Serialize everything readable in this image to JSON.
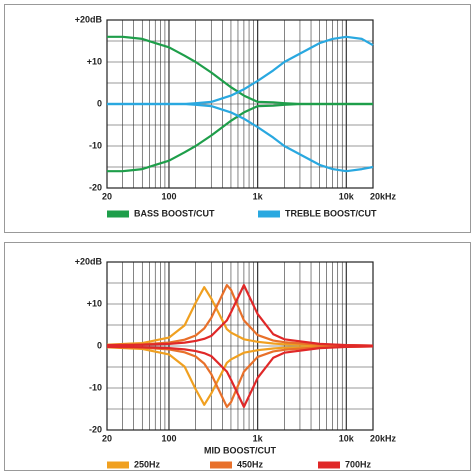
{
  "chart_data": [
    {
      "type": "line",
      "log_x": true,
      "x": [
        20,
        30,
        50,
        70,
        100,
        150,
        200,
        300,
        500,
        700,
        1000,
        1500,
        2000,
        3000,
        5000,
        7000,
        10000,
        15000,
        20000
      ],
      "series": [
        {
          "name": "BASS BOOST/CUT",
          "color": "#1e9e4a",
          "boost": [
            16,
            16,
            15.5,
            14.5,
            13.5,
            11.5,
            10,
            7.5,
            4,
            2,
            0.5,
            0.4,
            0.2,
            0,
            0,
            0,
            0,
            0,
            0
          ],
          "cut": [
            -16,
            -16,
            -15.5,
            -14.5,
            -13.5,
            -11.5,
            -10,
            -7.5,
            -4,
            -2,
            -0.5,
            -0.4,
            -0.2,
            0,
            0,
            0,
            0,
            0,
            0
          ]
        },
        {
          "name": "TREBLE BOOST/CUT",
          "color": "#29a8e0",
          "boost": [
            0,
            0,
            0,
            0,
            0,
            0,
            0.2,
            0.5,
            2,
            3.5,
            5.5,
            8,
            10,
            12,
            14.5,
            15.5,
            16,
            15.5,
            14
          ],
          "cut": [
            0,
            0,
            0,
            0,
            0,
            0,
            -0.2,
            -0.5,
            -2,
            -3.5,
            -5.5,
            -8,
            -10,
            -12,
            -14.5,
            -15.5,
            -16,
            -15.5,
            -15
          ]
        }
      ],
      "xlim": [
        20,
        20000
      ],
      "ylim": [
        -20,
        20
      ],
      "xticks": [
        20,
        100,
        {
          "value": 1000,
          "label": "1k"
        },
        {
          "value": 10000,
          "label": "10k"
        },
        {
          "value": 20000,
          "label": "20kHz"
        }
      ],
      "yticks": [
        {
          "value": 20,
          "label": "+20dB"
        },
        {
          "value": 10,
          "label": "+10"
        },
        0,
        -10,
        -20
      ],
      "xgrid": [
        20,
        30,
        40,
        50,
        60,
        70,
        80,
        90,
        100,
        200,
        300,
        400,
        500,
        600,
        700,
        800,
        900,
        1000,
        2000,
        3000,
        4000,
        5000,
        6000,
        7000,
        8000,
        9000,
        10000,
        20000
      ],
      "ygrid": [
        -20,
        -15,
        -10,
        -5,
        0,
        5,
        10,
        15,
        20
      ]
    },
    {
      "type": "line",
      "log_x": true,
      "title": "MID BOOST/CUT",
      "x": [
        20,
        50,
        100,
        150,
        200,
        250,
        300,
        450,
        500,
        700,
        1000,
        1500,
        2000,
        5000,
        10000,
        20000
      ],
      "series": [
        {
          "name": "250Hz",
          "color": "#f0a020",
          "boost": [
            0.3,
            0.7,
            2,
            4.9,
            10.3,
            14,
            11.3,
            4,
            3.2,
            1.6,
            1,
            0.6,
            0.4,
            0.2,
            0.1,
            0.1
          ],
          "cut": [
            -0.3,
            -0.7,
            -2,
            -4.9,
            -10.3,
            -14,
            -11.3,
            -4,
            -3.2,
            -1.6,
            -1,
            -0.6,
            -0.4,
            -0.2,
            -0.1,
            -0.1
          ]
        },
        {
          "name": "450Hz",
          "color": "#e8702a",
          "boost": [
            0.2,
            0.4,
            0.8,
            1.5,
            2.5,
            4.2,
            6.7,
            14.5,
            13.4,
            6.1,
            2.6,
            1.3,
            0.9,
            0.3,
            0.2,
            0.1
          ],
          "cut": [
            -0.2,
            -0.4,
            -0.8,
            -1.5,
            -2.5,
            -4.2,
            -6.7,
            -14.5,
            -13.4,
            -6.1,
            -2.6,
            -1.3,
            -0.9,
            -0.3,
            -0.2,
            -0.1
          ]
        },
        {
          "name": "700Hz",
          "color": "#e02828",
          "boost": [
            0.2,
            0.3,
            0.5,
            0.8,
            1.2,
            1.7,
            2.4,
            6.1,
            8,
            14.5,
            7.6,
            2.8,
            1.6,
            0.5,
            0.2,
            0.1
          ],
          "cut": [
            -0.2,
            -0.3,
            -0.5,
            -0.8,
            -1.2,
            -1.7,
            -2.4,
            -6.1,
            -8,
            -14.5,
            -7.6,
            -2.8,
            -1.6,
            -0.5,
            -0.2,
            -0.1
          ]
        }
      ],
      "xlim": [
        20,
        20000
      ],
      "ylim": [
        -20,
        20
      ],
      "xticks": [
        20,
        100,
        {
          "value": 1000,
          "label": "1k"
        },
        {
          "value": 10000,
          "label": "10k"
        },
        {
          "value": 20000,
          "label": "20kHz"
        }
      ],
      "yticks": [
        {
          "value": 20,
          "label": "+20dB"
        },
        {
          "value": 10,
          "label": "+10"
        },
        0,
        -10,
        -20
      ],
      "xgrid": [
        20,
        30,
        40,
        50,
        60,
        70,
        80,
        90,
        100,
        200,
        300,
        400,
        500,
        600,
        700,
        800,
        900,
        1000,
        2000,
        3000,
        4000,
        5000,
        6000,
        7000,
        8000,
        9000,
        10000,
        20000
      ],
      "ygrid": [
        -20,
        -15,
        -10,
        -5,
        0,
        5,
        10,
        15,
        20
      ]
    }
  ]
}
